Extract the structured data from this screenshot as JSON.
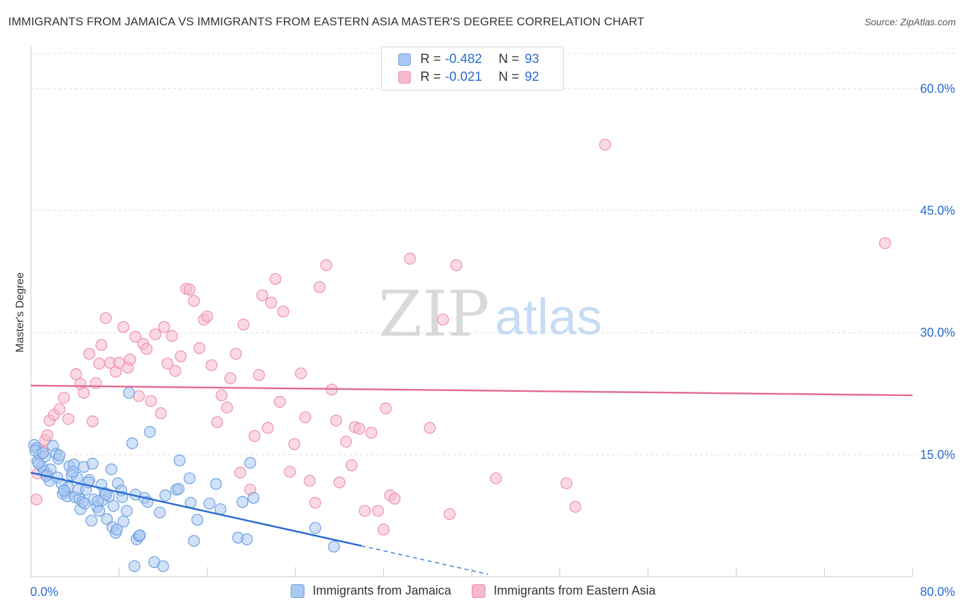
{
  "title": "IMMIGRANTS FROM JAMAICA VS IMMIGRANTS FROM EASTERN ASIA MASTER'S DEGREE CORRELATION CHART",
  "source": "Source: ZipAtlas.com",
  "watermark": {
    "zip": "ZIP",
    "atlas": "atlas"
  },
  "colors": {
    "blue_fill": "#a9c8f3",
    "blue_stroke": "#6d9fe0",
    "blue_line": "#2a6bd1",
    "pink_fill": "#f7b9cc",
    "pink_stroke": "#ec8fab",
    "pink_line": "#e26b98",
    "accent_text": "#2a6bd1",
    "grid": "#dddddd"
  },
  "legend": {
    "rows": [
      {
        "r_label": "R =",
        "r_value": "-0.482",
        "n_label": "N =",
        "n_value": "93"
      },
      {
        "r_label": "R =",
        "r_value": "-0.021",
        "n_label": "N =",
        "n_value": "92"
      }
    ]
  },
  "bottom_legend": {
    "items": [
      "Immigrants from Jamaica",
      "Immigrants from Eastern Asia"
    ]
  },
  "chart_data": {
    "type": "scatter",
    "title": "IMMIGRANTS FROM JAMAICA VS IMMIGRANTS FROM EASTERN ASIA MASTER'S DEGREE CORRELATION CHART",
    "xlabel": "",
    "ylabel": "Master's Degree",
    "xlim": [
      0,
      80
    ],
    "ylim": [
      0,
      65
    ],
    "x_tick_labels": [
      "0.0%",
      "80.0%"
    ],
    "y_ticks": [
      15,
      30,
      45,
      60
    ],
    "y_tick_labels": [
      "15.0%",
      "30.0%",
      "45.0%",
      "60.0%"
    ],
    "series": [
      {
        "name": "Immigrants from Jamaica",
        "color": "blue",
        "r": -0.482,
        "n": 93,
        "trend": {
          "x0": 0,
          "y0": 12.8,
          "x1": 30,
          "y1": 3.8,
          "dash_to_x": 41.5,
          "dash_to_y": 0.3
        },
        "points": [
          [
            0.3,
            16.2
          ],
          [
            0.5,
            15.8
          ],
          [
            0.6,
            14.2
          ],
          [
            0.8,
            15.0
          ],
          [
            1.0,
            13.5
          ],
          [
            1.2,
            13.0
          ],
          [
            1.3,
            14.8
          ],
          [
            1.5,
            12.6
          ],
          [
            1.8,
            13.2
          ],
          [
            2.0,
            16.1
          ],
          [
            1.7,
            11.8
          ],
          [
            2.4,
            12.2
          ],
          [
            2.3,
            15.1
          ],
          [
            2.5,
            14.5
          ],
          [
            2.8,
            11.4
          ],
          [
            3.1,
            10.4
          ],
          [
            2.9,
            10.2
          ],
          [
            3.3,
            9.9
          ],
          [
            3.5,
            13.6
          ],
          [
            3.4,
            11.0
          ],
          [
            3.7,
            12.5
          ],
          [
            3.9,
            13.8
          ],
          [
            4.0,
            9.8
          ],
          [
            4.2,
            12.2
          ],
          [
            4.4,
            9.6
          ],
          [
            4.5,
            8.3
          ],
          [
            4.3,
            10.7
          ],
          [
            4.7,
            9.2
          ],
          [
            5.0,
            10.7
          ],
          [
            4.8,
            13.5
          ],
          [
            5.3,
            11.9
          ],
          [
            5.6,
            13.9
          ],
          [
            5.7,
            9.5
          ],
          [
            5.5,
            6.9
          ],
          [
            6.0,
            8.6
          ],
          [
            6.2,
            8.1
          ],
          [
            6.4,
            11.3
          ],
          [
            6.7,
            10.3
          ],
          [
            6.5,
            9.4
          ],
          [
            6.9,
            7.1
          ],
          [
            7.1,
            9.9
          ],
          [
            7.3,
            13.2
          ],
          [
            7.5,
            8.7
          ],
          [
            7.4,
            6.1
          ],
          [
            7.7,
            5.4
          ],
          [
            7.9,
            11.5
          ],
          [
            7.8,
            5.8
          ],
          [
            8.2,
            10.6
          ],
          [
            8.3,
            9.8
          ],
          [
            8.4,
            6.8
          ],
          [
            8.7,
            8.1
          ],
          [
            8.9,
            22.6
          ],
          [
            9.2,
            16.4
          ],
          [
            9.5,
            10.1
          ],
          [
            9.6,
            4.6
          ],
          [
            9.8,
            5.0
          ],
          [
            9.9,
            5.1
          ],
          [
            10.3,
            9.7
          ],
          [
            10.6,
            9.2
          ],
          [
            10.8,
            17.8
          ],
          [
            11.2,
            1.8
          ],
          [
            9.4,
            1.3
          ],
          [
            11.7,
            7.9
          ],
          [
            12.0,
            1.3
          ],
          [
            12.2,
            10.0
          ],
          [
            13.2,
            10.7
          ],
          [
            13.5,
            14.3
          ],
          [
            13.4,
            10.8
          ],
          [
            14.4,
            12.1
          ],
          [
            14.5,
            9.1
          ],
          [
            14.8,
            4.4
          ],
          [
            15.1,
            7.0
          ],
          [
            16.2,
            9.0
          ],
          [
            16.8,
            11.4
          ],
          [
            17.2,
            8.3
          ],
          [
            18.8,
            4.8
          ],
          [
            19.2,
            9.2
          ],
          [
            19.6,
            4.6
          ],
          [
            19.9,
            14.0
          ],
          [
            20.2,
            9.7
          ],
          [
            25.8,
            6.0
          ],
          [
            27.5,
            3.7
          ],
          [
            0.4,
            15.5
          ],
          [
            0.7,
            13.9
          ],
          [
            1.1,
            15.2
          ],
          [
            3.0,
            10.6
          ],
          [
            5.2,
            11.6
          ],
          [
            6.1,
            9.3
          ],
          [
            6.8,
            10.1
          ],
          [
            2.6,
            14.9
          ],
          [
            3.8,
            12.9
          ],
          [
            1.4,
            12.4
          ],
          [
            4.9,
            9.0
          ]
        ]
      },
      {
        "name": "Immigrants from Eastern Asia",
        "color": "pink",
        "r": -0.021,
        "n": 92,
        "trend": {
          "x0": 0,
          "y0": 23.5,
          "x1": 80,
          "y1": 22.3
        },
        "points": [
          [
            0.5,
            9.5
          ],
          [
            0.6,
            12.7
          ],
          [
            1.1,
            15.4
          ],
          [
            1.3,
            16.8
          ],
          [
            1.5,
            17.4
          ],
          [
            1.7,
            19.2
          ],
          [
            2.1,
            19.9
          ],
          [
            2.6,
            20.6
          ],
          [
            3.0,
            22.0
          ],
          [
            3.4,
            19.4
          ],
          [
            4.1,
            24.9
          ],
          [
            4.5,
            23.7
          ],
          [
            4.8,
            22.6
          ],
          [
            5.3,
            27.4
          ],
          [
            5.6,
            19.1
          ],
          [
            5.9,
            23.8
          ],
          [
            6.2,
            26.2
          ],
          [
            6.4,
            28.5
          ],
          [
            6.8,
            31.8
          ],
          [
            7.2,
            26.3
          ],
          [
            7.7,
            25.2
          ],
          [
            8.0,
            26.3
          ],
          [
            8.4,
            30.7
          ],
          [
            8.8,
            25.7
          ],
          [
            9.0,
            26.7
          ],
          [
            9.5,
            29.5
          ],
          [
            9.8,
            22.2
          ],
          [
            10.2,
            28.6
          ],
          [
            10.5,
            28.0
          ],
          [
            10.9,
            21.6
          ],
          [
            11.3,
            29.8
          ],
          [
            11.8,
            20.1
          ],
          [
            12.1,
            30.7
          ],
          [
            12.4,
            26.2
          ],
          [
            12.8,
            29.6
          ],
          [
            13.1,
            25.3
          ],
          [
            13.6,
            27.1
          ],
          [
            14.1,
            35.4
          ],
          [
            14.4,
            35.3
          ],
          [
            14.8,
            33.9
          ],
          [
            15.3,
            28.1
          ],
          [
            15.7,
            31.6
          ],
          [
            16.0,
            32.0
          ],
          [
            16.4,
            26.0
          ],
          [
            16.9,
            19.0
          ],
          [
            17.3,
            22.3
          ],
          [
            17.8,
            20.8
          ],
          [
            18.1,
            24.4
          ],
          [
            18.6,
            27.4
          ],
          [
            19.0,
            12.8
          ],
          [
            19.3,
            31.0
          ],
          [
            19.9,
            10.7
          ],
          [
            20.3,
            17.3
          ],
          [
            20.7,
            24.8
          ],
          [
            21.0,
            34.6
          ],
          [
            21.5,
            18.3
          ],
          [
            21.8,
            33.7
          ],
          [
            22.2,
            36.6
          ],
          [
            22.6,
            21.5
          ],
          [
            22.9,
            32.6
          ],
          [
            23.5,
            12.9
          ],
          [
            23.9,
            16.3
          ],
          [
            24.5,
            25.0
          ],
          [
            24.9,
            19.6
          ],
          [
            25.3,
            11.8
          ],
          [
            25.8,
            9.1
          ],
          [
            26.2,
            35.6
          ],
          [
            26.8,
            38.3
          ],
          [
            27.3,
            23.0
          ],
          [
            27.7,
            19.2
          ],
          [
            28.0,
            11.6
          ],
          [
            28.6,
            16.6
          ],
          [
            29.1,
            13.7
          ],
          [
            29.4,
            18.4
          ],
          [
            29.8,
            18.2
          ],
          [
            30.3,
            8.1
          ],
          [
            30.9,
            17.7
          ],
          [
            31.5,
            8.1
          ],
          [
            32.2,
            20.7
          ],
          [
            32.0,
            5.8
          ],
          [
            32.6,
            10.0
          ],
          [
            33.0,
            9.6
          ],
          [
            34.4,
            39.1
          ],
          [
            36.2,
            18.3
          ],
          [
            37.4,
            31.6
          ],
          [
            38.0,
            7.7
          ],
          [
            38.6,
            38.3
          ],
          [
            42.2,
            12.1
          ],
          [
            48.6,
            11.5
          ],
          [
            49.4,
            8.6
          ],
          [
            52.1,
            53.1
          ],
          [
            77.5,
            41.0
          ]
        ]
      }
    ]
  }
}
